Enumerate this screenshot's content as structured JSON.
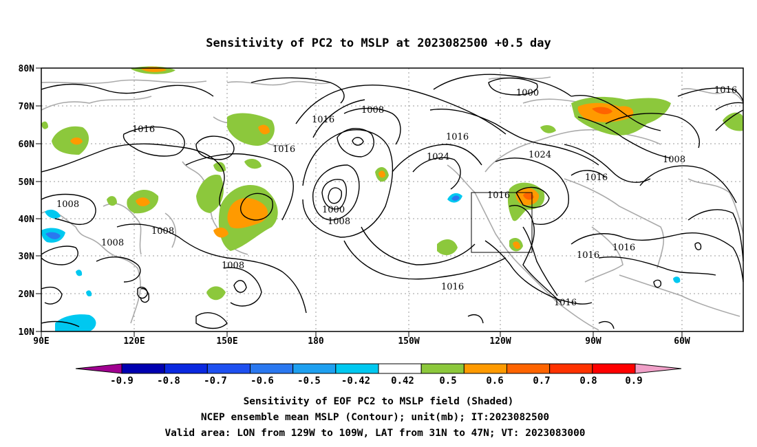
{
  "title": "Sensitivity of PC2 to MSLP at 2023082500 +0.5 day",
  "x_axis": {
    "ticks": [
      "90E",
      "120E",
      "150E",
      "180",
      "150W",
      "120W",
      "90W",
      "60W"
    ]
  },
  "y_axis": {
    "ticks": [
      "80N",
      "70N",
      "60N",
      "50N",
      "40N",
      "30N",
      "20N",
      "10N"
    ]
  },
  "contour_labels": [
    "1016",
    "1016",
    "1016",
    "1008",
    "1016",
    "1024",
    "1016",
    "1000",
    "1024",
    "1016",
    "1008",
    "1016",
    "1008",
    "1000",
    "1008",
    "1016",
    "1008",
    "1008",
    "1008",
    "1016",
    "1016",
    "1016",
    "1016"
  ],
  "colorbar": {
    "labels": [
      "-0.9",
      "-0.8",
      "-0.7",
      "-0.6",
      "-0.5",
      "-0.42",
      "0.42",
      "0.5",
      "0.6",
      "0.7",
      "0.8",
      "0.9"
    ],
    "colors": [
      "#a00090",
      "#0000b0",
      "#0a28e0",
      "#1e50f0",
      "#2a78f0",
      "#1ea0f0",
      "#00c8f0",
      "#ffffff",
      "#8cc83c",
      "#ff9a00",
      "#ff6400",
      "#ff3200",
      "#ff0000",
      "#f0a0c8"
    ]
  },
  "shading_colors": {
    "positive_low": "#8cc83c",
    "positive_mid": "#ff9a00",
    "positive_high": "#ff6400",
    "negative_low": "#00c8f0",
    "negative_mid": "#2a78f0"
  },
  "footer": {
    "line1": "Sensitivity of EOF PC2 to MSLP field (Shaded)",
    "line2": "NCEP ensemble mean MSLP (Contour); unit(mb); IT:2023082500",
    "line3": "Valid area: LON from 129W to 109W, LAT from 31N to 47N; VT: 2023083000"
  }
}
